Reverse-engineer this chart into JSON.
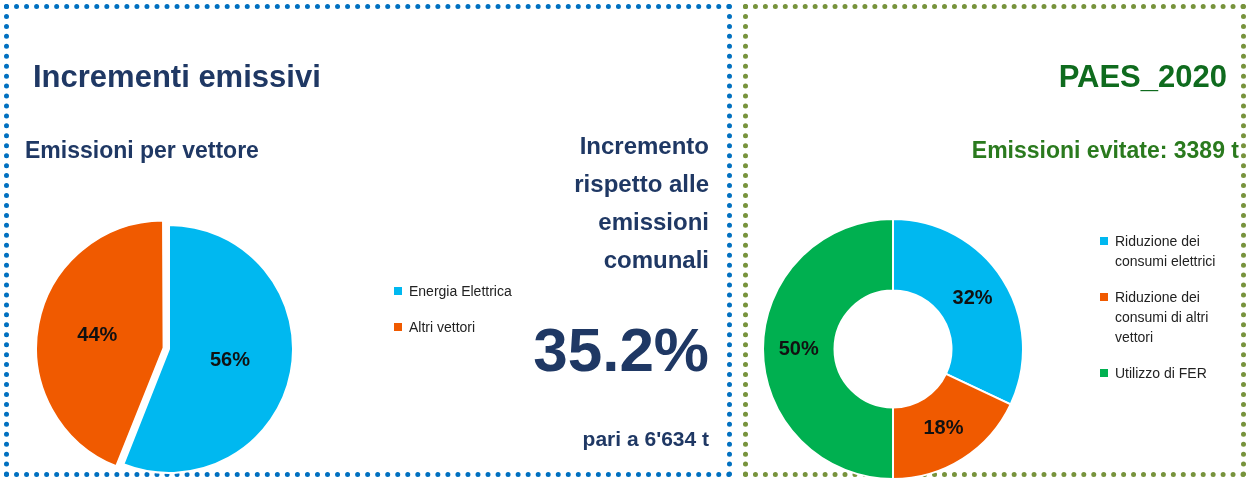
{
  "chart_data": [
    {
      "type": "pie",
      "title": "Incrementi emissivi",
      "subtitle": "Emissioni per vettore",
      "categories": [
        "Energia Elettrica",
        "Altri vettori"
      ],
      "values": [
        56,
        44
      ],
      "colors": [
        "#00b8f0",
        "#f05a00"
      ],
      "value_labels": [
        "56%",
        "44%"
      ],
      "legend": "right"
    },
    {
      "type": "other",
      "annotations": [
        "Incremento rispetto alle emissioni comunali",
        "35.2%",
        "pari a 6'634 t"
      ]
    },
    {
      "type": "donut",
      "title": "PAES_2020",
      "subtitle": "Emissioni evitate: 3389 t",
      "categories": [
        "Riduzione dei consumi elettrici",
        "Riduzione dei consumi di altri vettori",
        "Utilizzo di FER"
      ],
      "values": [
        32,
        18,
        50
      ],
      "colors": [
        "#00b8f0",
        "#f05a00",
        "#00b050"
      ],
      "value_labels": [
        "32%",
        "18%",
        "50%"
      ],
      "legend": "right"
    }
  ]
}
